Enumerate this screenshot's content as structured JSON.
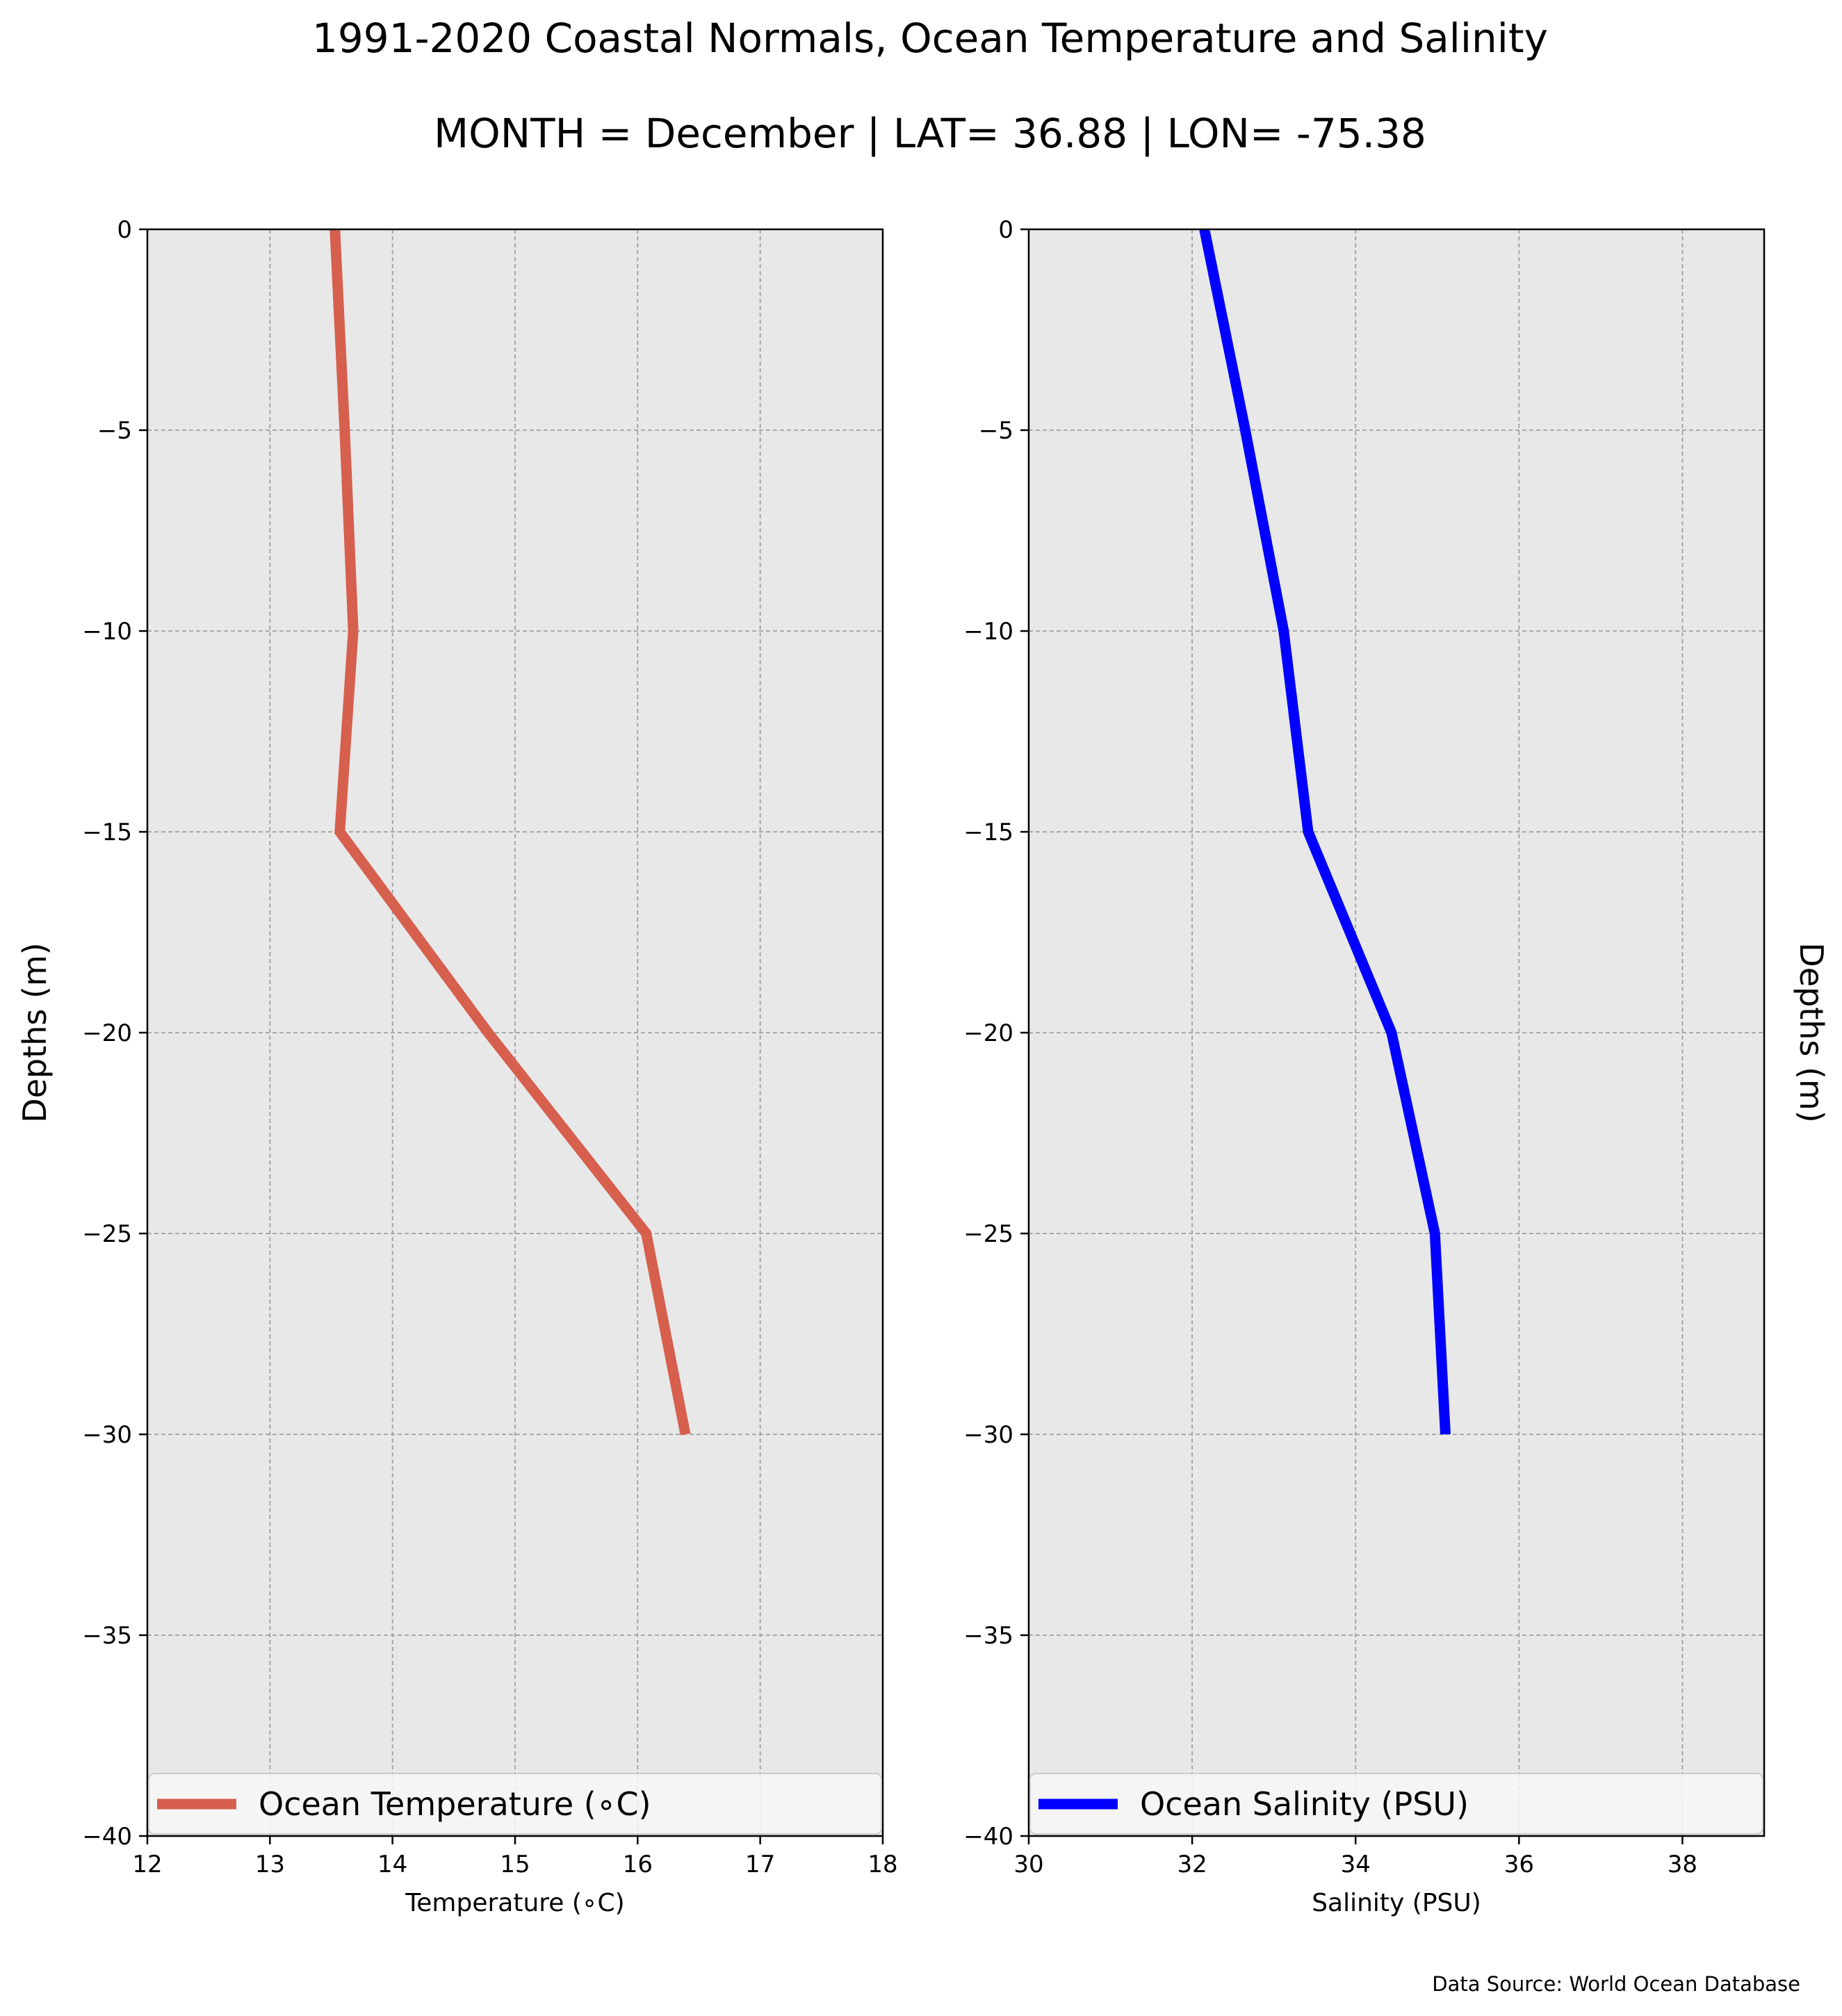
{
  "figure": {
    "title": "1991-2020 Coastal Normals, Ocean Temperature and Salinity",
    "subtitle": "MONTH = December | LAT= 36.88 | LON= -75.38",
    "source": "Data Source: World Ocean Database",
    "background": "#ffffff",
    "plot_background": "#e8e8e8"
  },
  "chart_data": [
    {
      "type": "line",
      "xlabel": "Temperature (∘C)",
      "ylabel": "Depths (m)",
      "xlim": [
        12,
        18
      ],
      "ylim": [
        -40,
        0
      ],
      "xticks": [
        12,
        13,
        14,
        15,
        16,
        17,
        18
      ],
      "yticks": [
        0,
        -5,
        -10,
        -15,
        -20,
        -25,
        -30,
        -35,
        -40
      ],
      "ytick_labels": [
        "0",
        "−5",
        "−10",
        "−15",
        "−20",
        "−25",
        "−30",
        "−35",
        "−40"
      ],
      "grid": true,
      "legend_position": "bottom",
      "series": [
        {
          "name": "Ocean Temperature (∘C)",
          "color": "#d65f4e",
          "x": [
            13.53,
            13.61,
            13.68,
            13.57,
            14.78,
            16.07,
            16.39
          ],
          "y": [
            0,
            -5,
            -10,
            -15,
            -20,
            -25,
            -30
          ]
        }
      ]
    },
    {
      "type": "line",
      "xlabel": "Salinity (PSU)",
      "ylabel": "Depths (m)",
      "xlim": [
        30,
        39
      ],
      "ylim": [
        -40,
        0
      ],
      "xticks": [
        30,
        32,
        34,
        36,
        38
      ],
      "yticks": [
        0,
        -5,
        -10,
        -15,
        -20,
        -25,
        -30,
        -35,
        -40
      ],
      "ytick_labels": [
        "0",
        "−5",
        "−10",
        "−15",
        "−20",
        "−25",
        "−30",
        "−35",
        "−40"
      ],
      "grid": true,
      "legend_position": "bottom",
      "series": [
        {
          "name": "Ocean Salinity (PSU)",
          "color": "#0000ff",
          "x": [
            32.15,
            32.65,
            33.12,
            33.42,
            34.44,
            34.97,
            35.1
          ],
          "y": [
            0,
            -5,
            -10,
            -15,
            -20,
            -25,
            -30
          ]
        }
      ]
    }
  ]
}
